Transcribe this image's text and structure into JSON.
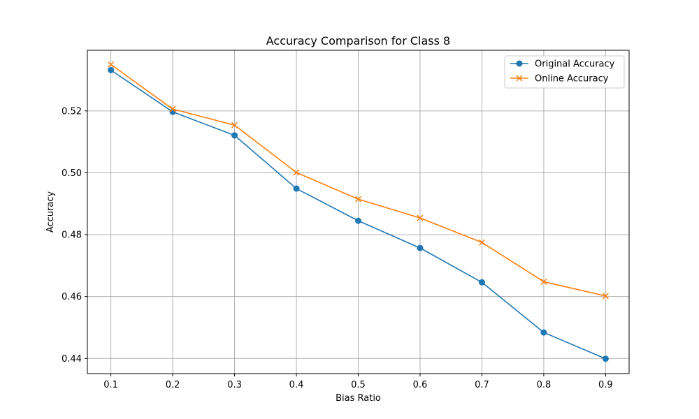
{
  "chart_data": {
    "type": "line",
    "title": "Accuracy Comparison for Class 8",
    "xlabel": "Bias Ratio",
    "ylabel": "Accuracy",
    "x": [
      0.1,
      0.2,
      0.3,
      0.4,
      0.5,
      0.6,
      0.7,
      0.8,
      0.9
    ],
    "x_ticks": [
      "0.1",
      "0.2",
      "0.3",
      "0.4",
      "0.5",
      "0.6",
      "0.7",
      "0.8",
      "0.9"
    ],
    "y_ticks": [
      "0.44",
      "0.46",
      "0.48",
      "0.50",
      "0.52"
    ],
    "xlim": [
      0.062,
      0.938
    ],
    "ylim": [
      0.4351,
      0.5396
    ],
    "grid": true,
    "legend_position": "top-right",
    "series": [
      {
        "name": "Original Accuracy",
        "color": "#1f77b4",
        "marker": "circle",
        "values": [
          0.5332,
          0.5197,
          0.5121,
          0.4949,
          0.4845,
          0.4757,
          0.4646,
          0.4484,
          0.4399
        ]
      },
      {
        "name": "Online Accuracy",
        "color": "#ff7f0e",
        "marker": "x",
        "values": [
          0.535,
          0.5206,
          0.5154,
          0.5001,
          0.4915,
          0.4854,
          0.4775,
          0.4648,
          0.4602
        ]
      }
    ]
  }
}
